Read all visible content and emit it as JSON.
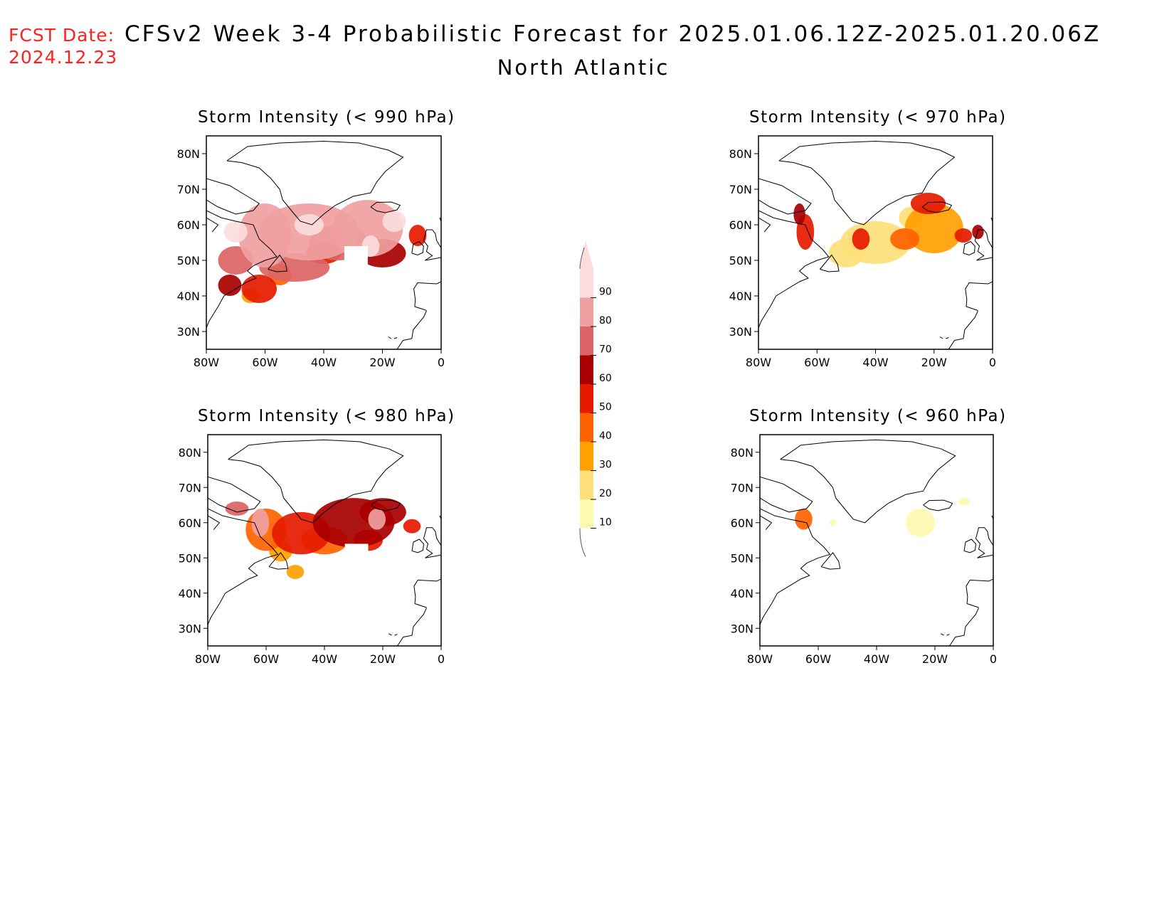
{
  "header": {
    "fcst_label": "FCST Date:",
    "fcst_date": "2024.12.23",
    "title": "CFSv2 Week 3-4 Probabilistic Forecast for 2025.01.06.12Z-2025.01.20.06Z",
    "region": "North Atlantic"
  },
  "axes": {
    "x_ticks": [
      "80W",
      "60W",
      "40W",
      "20W",
      "0"
    ],
    "y_ticks": [
      "80N",
      "70N",
      "60N",
      "50N",
      "40N",
      "30N"
    ],
    "lon_range": [
      -80,
      0
    ],
    "lat_range": [
      25,
      85
    ]
  },
  "panels": [
    {
      "title": "Storm Intensity (< 990 hPa)",
      "position": "top-left"
    },
    {
      "title": "Storm Intensity (< 970 hPa)",
      "position": "top-right"
    },
    {
      "title": "Storm Intensity (< 980 hPa)",
      "position": "bottom-left"
    },
    {
      "title": "Storm Intensity (< 960 hPa)",
      "position": "bottom-right"
    }
  ],
  "colorbar": {
    "levels": [
      "10",
      "20",
      "30",
      "40",
      "50",
      "60",
      "70",
      "80",
      "90"
    ],
    "colors": [
      "#fff9b0",
      "#fde07a",
      "#ffa000",
      "#ff6300",
      "#e61a00",
      "#a80000",
      "#dc6464",
      "#f0a0a0",
      "#fcdcdc"
    ]
  }
}
